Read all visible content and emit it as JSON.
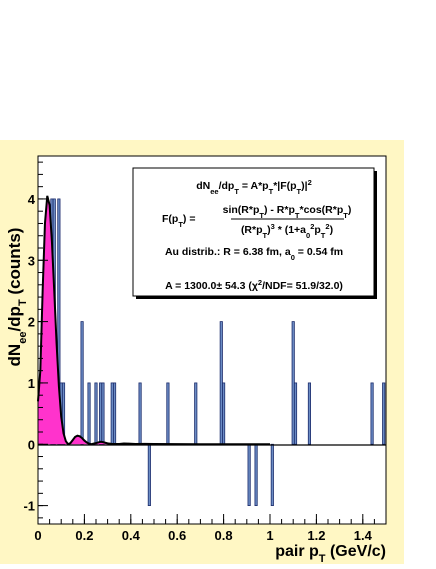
{
  "chart_data": {
    "type": "bar",
    "xlabel_main": "pair p",
    "xlabel_sub": "T",
    "xlabel_unit": " (GeV/c)",
    "ylabel_main": "dN",
    "ylabel_sub1": "ee",
    "ylabel_mid": "/dp",
    "ylabel_sub2": "T",
    "ylabel_unit": " (counts)",
    "xlim": [
      0,
      1.5
    ],
    "ylim": [
      -1.3,
      4.7
    ],
    "x_ticks": [
      0,
      0.2,
      0.4,
      0.6,
      0.8,
      1,
      1.2,
      1.4
    ],
    "x_tick_labels": [
      "0",
      "0.2",
      "0.4",
      "0.6",
      "0.8",
      "1",
      "1.2",
      "1.4"
    ],
    "y_ticks": [
      -1,
      0,
      1,
      2,
      3,
      4
    ],
    "y_tick_labels": [
      "-1",
      "0",
      "1",
      "2",
      "3",
      "4"
    ],
    "bin_width": 0.01,
    "histogram": [
      {
        "x": 0.06,
        "value": 4
      },
      {
        "x": 0.07,
        "value": 4
      },
      {
        "x": 0.09,
        "value": 4
      },
      {
        "x": 0.1,
        "value": 1
      },
      {
        "x": 0.11,
        "value": 1
      },
      {
        "x": 0.19,
        "value": 2
      },
      {
        "x": 0.22,
        "value": 1
      },
      {
        "x": 0.25,
        "value": 1
      },
      {
        "x": 0.27,
        "value": 1
      },
      {
        "x": 0.28,
        "value": 1
      },
      {
        "x": 0.32,
        "value": 1
      },
      {
        "x": 0.33,
        "value": 1
      },
      {
        "x": 0.44,
        "value": 1
      },
      {
        "x": 0.48,
        "value": -1
      },
      {
        "x": 0.56,
        "value": 1
      },
      {
        "x": 0.68,
        "value": 1
      },
      {
        "x": 0.79,
        "value": 2
      },
      {
        "x": 0.8,
        "value": 1
      },
      {
        "x": 0.91,
        "value": -1
      },
      {
        "x": 0.94,
        "value": -1
      },
      {
        "x": 1.01,
        "value": -1
      },
      {
        "x": 1.1,
        "value": 2
      },
      {
        "x": 1.11,
        "value": 1
      },
      {
        "x": 1.17,
        "value": 1
      },
      {
        "x": 1.44,
        "value": 1
      },
      {
        "x": 1.49,
        "value": 1
      }
    ],
    "fit_curve": [
      [
        0,
        0.7
      ],
      [
        0.01,
        1.2
      ],
      [
        0.02,
        2.5
      ],
      [
        0.03,
        3.6
      ],
      [
        0.04,
        4.05
      ],
      [
        0.05,
        3.9
      ],
      [
        0.06,
        3.3
      ],
      [
        0.07,
        2.5
      ],
      [
        0.08,
        1.65
      ],
      [
        0.09,
        0.95
      ],
      [
        0.1,
        0.45
      ],
      [
        0.11,
        0.18
      ],
      [
        0.12,
        0.05
      ],
      [
        0.13,
        0.0
      ],
      [
        0.14,
        0.02
      ],
      [
        0.15,
        0.07
      ],
      [
        0.16,
        0.12
      ],
      [
        0.17,
        0.14
      ],
      [
        0.18,
        0.13
      ],
      [
        0.19,
        0.1
      ],
      [
        0.2,
        0.06
      ],
      [
        0.21,
        0.03
      ],
      [
        0.22,
        0.01
      ],
      [
        0.23,
        0.0
      ],
      [
        0.24,
        0.01
      ],
      [
        0.25,
        0.02
      ],
      [
        0.26,
        0.03
      ],
      [
        0.27,
        0.04
      ],
      [
        0.28,
        0.035
      ],
      [
        0.29,
        0.025
      ],
      [
        0.3,
        0.015
      ],
      [
        0.32,
        0.005
      ],
      [
        0.35,
        0.005
      ],
      [
        0.37,
        0.012
      ],
      [
        0.39,
        0.01
      ],
      [
        0.42,
        0.005
      ],
      [
        0.46,
        0.006
      ],
      [
        0.5,
        0.004
      ],
      [
        0.6,
        0.002
      ],
      [
        0.7,
        0.001
      ],
      [
        0.8,
        0.0
      ],
      [
        0.9,
        0.0
      ],
      [
        1.0,
        0.0
      ]
    ],
    "legend": {
      "line1": {
        "main": "dN",
        "sub1": "ee",
        "mid": "/dp",
        "sub2": "T",
        "rest": " = A*p",
        "sub3": "T",
        "tail": "*|F(p",
        "sub4": "T",
        "close": ")|",
        "sup": "2"
      },
      "line2_label": {
        "main": "F(p",
        "sub": "T",
        "close": ") ="
      },
      "line2_num": {
        "text": "sin(R*p",
        "sub1": "T",
        "mid": ") - R*p",
        "sub2": "T",
        "mid2": "*cos(R*p",
        "sub3": "T",
        "close": ")"
      },
      "line2_den": {
        "text": "(R*p",
        "sub1": "T",
        "mid": ")",
        "sup1": "3",
        "mid2": " * (1+a",
        "sub2": "0",
        "sup2": "2",
        "mid3": "p",
        "sub3": "T",
        "sup3": "2",
        "close": ")"
      },
      "line3": {
        "text": "Au distrib.: R = 6.38 fm, a",
        "sub": "0",
        "rest": " = 0.54 fm"
      },
      "line4": {
        "text": "A = 1300.0",
        "pm": "±",
        "mid": " 54.3 (χ",
        "sup": "2",
        "rest": "/NDF= 51.9/32.0)"
      }
    },
    "colors": {
      "background": "#fff7c4",
      "hist_fill": "#6b8cc4",
      "hist_stroke": "#1b2b6b",
      "fit_fill": "#ff33cc",
      "fit_line": "#000000"
    }
  }
}
